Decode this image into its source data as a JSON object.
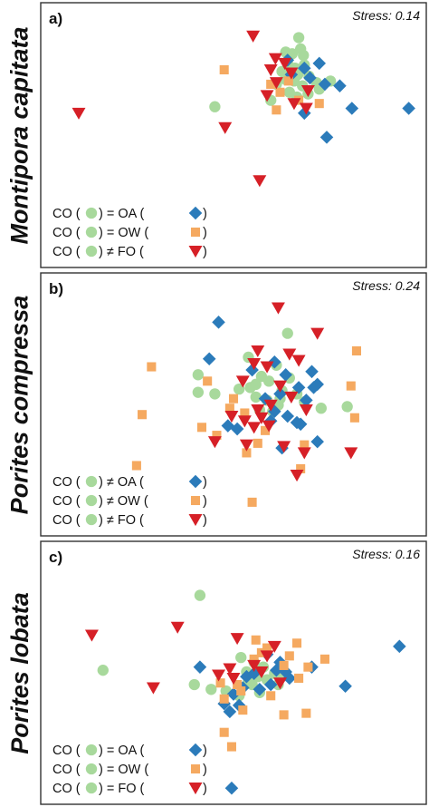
{
  "colors": {
    "CO": "#a8d99c",
    "OA": "#2b7bba",
    "OW": "#f5a960",
    "FO": "#d62027"
  },
  "chart_data": [
    {
      "type": "scatter",
      "panel_label": "a)",
      "species": "Montipora capitata",
      "stress": "Stress: 0.14",
      "legend": [
        {
          "pre": "CO (",
          "sign": "=",
          "name": "OA",
          "series": "OA"
        },
        {
          "pre": "CO (",
          "sign": "=",
          "name": "OW",
          "series": "OW"
        },
        {
          "pre": "CO (",
          "sign": "≠",
          "name": "FO",
          "series": "FO"
        }
      ],
      "series": [
        {
          "key": "CO",
          "marker": "circle",
          "points": [
            [
              270,
              4
            ],
            [
              272,
              18
            ],
            [
              256,
              22
            ],
            [
              263,
              24
            ],
            [
              275,
              26
            ],
            [
              258,
              36
            ],
            [
              276,
              38
            ],
            [
              266,
              42
            ],
            [
              252,
              46
            ],
            [
              269,
              50
            ],
            [
              281,
              52
            ],
            [
              256,
              56
            ],
            [
              265,
              58
            ],
            [
              304,
              58
            ],
            [
              289,
              60
            ],
            [
              246,
              62
            ],
            [
              274,
              64
            ],
            [
              292,
              68
            ],
            [
              260,
              72
            ],
            [
              280,
              74
            ],
            [
              268,
              78
            ],
            [
              180,
              90
            ],
            [
              240,
              82
            ]
          ]
        },
        {
          "key": "OA",
          "marker": "diamond",
          "points": [
            [
              258,
              32
            ],
            [
              292,
              36
            ],
            [
              276,
              42
            ],
            [
              262,
              50
            ],
            [
              282,
              54
            ],
            [
              298,
              62
            ],
            [
              314,
              64
            ],
            [
              327,
              92
            ],
            [
              388,
              92
            ],
            [
              276,
              98
            ],
            [
              300,
              128
            ]
          ]
        },
        {
          "key": "OW",
          "marker": "square",
          "points": [
            [
              190,
              44
            ],
            [
              240,
              62
            ],
            [
              250,
              72
            ],
            [
              270,
              82
            ],
            [
              292,
              86
            ],
            [
              246,
              94
            ],
            [
              259,
              58
            ]
          ]
        },
        {
          "key": "FO",
          "marker": "triangle",
          "points": [
            [
              221,
              2
            ],
            [
              245,
              30
            ],
            [
              255,
              36
            ],
            [
              240,
              44
            ],
            [
              262,
              48
            ],
            [
              246,
              60
            ],
            [
              236,
              76
            ],
            [
              265,
              86
            ],
            [
              278,
              92
            ],
            [
              34,
              98
            ],
            [
              191,
              116
            ],
            [
              228,
              182
            ],
            [
              280,
              70
            ]
          ]
        }
      ]
    },
    {
      "type": "scatter",
      "panel_label": "b)",
      "species": "Porites compressa",
      "stress": "Stress: 0.24",
      "legend": [
        {
          "pre": "CO (",
          "sign": "≠",
          "name": "OA",
          "series": "OA"
        },
        {
          "pre": "CO (",
          "sign": "≠",
          "name": "OW",
          "series": "OW"
        },
        {
          "pre": "CO (",
          "sign": "≠",
          "name": "FO",
          "series": "FO"
        }
      ],
      "series": [
        {
          "key": "CO",
          "marker": "circle",
          "points": [
            [
              258,
              36
            ],
            [
              216,
              66
            ],
            [
              246,
              76
            ],
            [
              162,
              88
            ],
            [
              230,
              90
            ],
            [
              260,
              92
            ],
            [
              238,
              96
            ],
            [
              224,
              100
            ],
            [
              206,
              106
            ],
            [
              162,
              110
            ],
            [
              252,
              108
            ],
            [
              268,
              112
            ],
            [
              180,
              112
            ],
            [
              224,
              116
            ],
            [
              236,
              120
            ],
            [
              248,
              126
            ],
            [
              276,
              122
            ],
            [
              294,
              130
            ],
            [
              228,
              132
            ],
            [
              322,
              128
            ],
            [
              218,
              104
            ],
            [
              250,
              118
            ],
            [
              242,
              134
            ]
          ]
        },
        {
          "key": "OA",
          "marker": "diamond",
          "points": [
            [
              184,
              22
            ],
            [
              174,
              68
            ],
            [
              244,
              72
            ],
            [
              220,
              82
            ],
            [
              284,
              84
            ],
            [
              256,
              88
            ],
            [
              290,
              100
            ],
            [
              270,
              104
            ],
            [
              250,
              112
            ],
            [
              234,
              118
            ],
            [
              278,
              120
            ],
            [
              244,
              134
            ],
            [
              258,
              140
            ],
            [
              194,
              152
            ],
            [
              204,
              156
            ],
            [
              240,
              146
            ],
            [
              272,
              150
            ],
            [
              290,
              172
            ],
            [
              252,
              180
            ],
            [
              286,
              104
            ],
            [
              268,
              148
            ]
          ]
        },
        {
          "key": "OW",
          "marker": "square",
          "points": [
            [
              332,
              58
            ],
            [
              112,
              78
            ],
            [
              172,
              96
            ],
            [
              326,
              102
            ],
            [
              200,
              118
            ],
            [
              196,
              130
            ],
            [
              102,
              138
            ],
            [
              330,
              142
            ],
            [
              166,
              154
            ],
            [
              234,
              158
            ],
            [
              226,
              174
            ],
            [
              276,
              176
            ],
            [
              214,
              186
            ],
            [
              272,
              206
            ],
            [
              96,
              202
            ],
            [
              220,
              248
            ],
            [
              182,
              164
            ],
            [
              212,
              136
            ]
          ]
        },
        {
          "key": "FO",
          "marker": "triangle",
          "points": [
            [
              248,
              4
            ],
            [
              290,
              36
            ],
            [
              226,
              58
            ],
            [
              260,
              62
            ],
            [
              222,
              74
            ],
            [
              270,
              70
            ],
            [
              236,
              78
            ],
            [
              210,
              96
            ],
            [
              250,
              102
            ],
            [
              262,
              116
            ],
            [
              240,
              126
            ],
            [
              226,
              132
            ],
            [
              278,
              132
            ],
            [
              198,
              140
            ],
            [
              212,
              146
            ],
            [
              230,
              142
            ],
            [
              238,
              152
            ],
            [
              180,
              172
            ],
            [
              214,
              176
            ],
            [
              254,
              178
            ],
            [
              276,
              186
            ],
            [
              326,
              186
            ],
            [
              268,
              214
            ],
            [
              222,
              154
            ]
          ]
        }
      ]
    },
    {
      "type": "scatter",
      "panel_label": "c)",
      "species": "Porites lobata",
      "stress": "Stress: 0.16",
      "legend": [
        {
          "pre": "CO (",
          "sign": "=",
          "name": "OA",
          "series": "OA"
        },
        {
          "pre": "CO (",
          "sign": "=",
          "name": "OW",
          "series": "OW"
        },
        {
          "pre": "CO (",
          "sign": "=",
          "name": "FO",
          "series": "FO"
        }
      ],
      "series": [
        {
          "key": "CO",
          "marker": "circle",
          "points": [
            [
              164,
              28
            ],
            [
              208,
              106
            ],
            [
              60,
              122
            ],
            [
              222,
              112
            ],
            [
              232,
              118
            ],
            [
              214,
              124
            ],
            [
              226,
              130
            ],
            [
              244,
              126
            ],
            [
              236,
              134
            ],
            [
              248,
              140
            ],
            [
              216,
              136
            ],
            [
              158,
              140
            ],
            [
              176,
              146
            ],
            [
              192,
              148
            ],
            [
              206,
              154
            ],
            [
              228,
              150
            ],
            [
              252,
              130
            ],
            [
              220,
              140
            ]
          ]
        },
        {
          "key": "OA",
          "marker": "diamond",
          "points": [
            [
              378,
              92
            ],
            [
              164,
              118
            ],
            [
              236,
              102
            ],
            [
              250,
              112
            ],
            [
              246,
              122
            ],
            [
              222,
              126
            ],
            [
              214,
              130
            ],
            [
              284,
              118
            ],
            [
              260,
              132
            ],
            [
              240,
              140
            ],
            [
              228,
              146
            ],
            [
              210,
              144
            ],
            [
              200,
              152
            ],
            [
              206,
              166
            ],
            [
              196,
              174
            ],
            [
              320,
              142
            ],
            [
              198,
              270
            ],
            [
              256,
              124
            ],
            [
              190,
              164
            ]
          ]
        },
        {
          "key": "OW",
          "marker": "square",
          "points": [
            [
              224,
              84
            ],
            [
              268,
              88
            ],
            [
              230,
              100
            ],
            [
              222,
              108
            ],
            [
              260,
              104
            ],
            [
              298,
              108
            ],
            [
              280,
              118
            ],
            [
              254,
              116
            ],
            [
              186,
              138
            ],
            [
              204,
              140
            ],
            [
              208,
              148
            ],
            [
              190,
              158
            ],
            [
              210,
              172
            ],
            [
              254,
              178
            ],
            [
              278,
              176
            ],
            [
              190,
              200
            ],
            [
              198,
              218
            ],
            [
              240,
              154
            ],
            [
              270,
              132
            ],
            [
              236,
              94
            ]
          ]
        },
        {
          "key": "FO",
          "marker": "triangle",
          "points": [
            [
              140,
              68
            ],
            [
              48,
              78
            ],
            [
              204,
              82
            ],
            [
              244,
              92
            ],
            [
              236,
              104
            ],
            [
              222,
              116
            ],
            [
              196,
              120
            ],
            [
              114,
              144
            ],
            [
              250,
              138
            ],
            [
              200,
              132
            ],
            [
              184,
              128
            ],
            [
              230,
              124
            ]
          ]
        }
      ]
    }
  ]
}
